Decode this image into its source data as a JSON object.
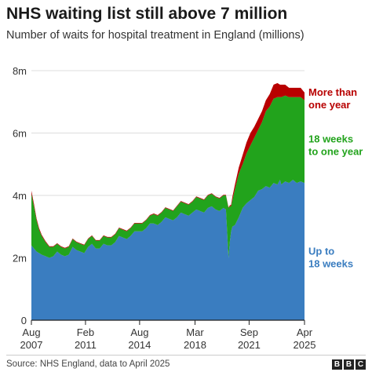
{
  "title": "NHS waiting list still above 7 million",
  "subtitle": "Number of waits for hospital treatment in England (millions)",
  "source": "Source: NHS England, data to April 2025",
  "logo": {
    "letters": [
      "B",
      "B",
      "C"
    ]
  },
  "chart_data": {
    "type": "area",
    "stacked": true,
    "title": "NHS waiting list still above 7 million",
    "subtitle": "Number of waits for hospital treatment in England (millions)",
    "ylim": [
      0,
      8
    ],
    "yticks": [
      0,
      2,
      4,
      6,
      8
    ],
    "ytick_labels": [
      "0",
      "2m",
      "4m",
      "6m",
      "8m"
    ],
    "xlim": [
      2007.583,
      2025.25
    ],
    "xticks": [
      {
        "x": 2007.583,
        "line1": "Aug",
        "line2": "2007"
      },
      {
        "x": 2011.083,
        "line1": "Feb",
        "line2": "2011"
      },
      {
        "x": 2014.583,
        "line1": "Aug",
        "line2": "2014"
      },
      {
        "x": 2018.167,
        "line1": "Mar",
        "line2": "2018"
      },
      {
        "x": 2021.667,
        "line1": "Sep",
        "line2": "2021"
      },
      {
        "x": 2025.25,
        "line1": "Apr",
        "line2": "2025"
      }
    ],
    "grid": true,
    "x": [
      2007.583,
      2007.75,
      2007.917,
      2008.083,
      2008.25,
      2008.5,
      2008.75,
      2009.0,
      2009.25,
      2009.5,
      2009.75,
      2010.0,
      2010.25,
      2010.5,
      2010.75,
      2011.0,
      2011.25,
      2011.5,
      2011.75,
      2012.0,
      2012.25,
      2012.5,
      2012.75,
      2013.0,
      2013.25,
      2013.5,
      2013.75,
      2014.0,
      2014.25,
      2014.5,
      2014.75,
      2015.0,
      2015.25,
      2015.5,
      2015.75,
      2016.0,
      2016.25,
      2016.5,
      2016.75,
      2017.0,
      2017.25,
      2017.5,
      2017.75,
      2018.0,
      2018.25,
      2018.5,
      2018.75,
      2019.0,
      2019.25,
      2019.5,
      2019.75,
      2020.0,
      2020.167,
      2020.25,
      2020.333,
      2020.417,
      2020.5,
      2020.583,
      2020.75,
      2021.0,
      2021.25,
      2021.5,
      2021.75,
      2022.0,
      2022.25,
      2022.5,
      2022.75,
      2023.0,
      2023.25,
      2023.5,
      2023.667,
      2023.75,
      2024.0,
      2024.25,
      2024.5,
      2024.75,
      2025.0,
      2025.25
    ],
    "series": [
      {
        "name": "Up to 18 weeks",
        "color": "#3a7dc0",
        "values": [
          2.4,
          2.3,
          2.2,
          2.15,
          2.1,
          2.05,
          2.0,
          2.05,
          2.2,
          2.1,
          2.05,
          2.1,
          2.35,
          2.25,
          2.2,
          2.15,
          2.35,
          2.45,
          2.3,
          2.3,
          2.45,
          2.4,
          2.4,
          2.5,
          2.7,
          2.65,
          2.6,
          2.7,
          2.85,
          2.85,
          2.85,
          2.95,
          3.1,
          3.1,
          3.05,
          3.15,
          3.3,
          3.25,
          3.2,
          3.3,
          3.45,
          3.4,
          3.35,
          3.45,
          3.55,
          3.5,
          3.45,
          3.6,
          3.65,
          3.55,
          3.5,
          3.6,
          3.55,
          2.8,
          2.0,
          2.5,
          2.85,
          3.0,
          3.05,
          3.3,
          3.6,
          3.75,
          3.85,
          3.95,
          4.15,
          4.2,
          4.3,
          4.25,
          4.4,
          4.35,
          4.5,
          4.35,
          4.45,
          4.4,
          4.5,
          4.4,
          4.45,
          4.4
        ]
      },
      {
        "name": "18 weeks to one year",
        "color": "#22a31c",
        "values": [
          1.65,
          1.35,
          1.0,
          0.75,
          0.6,
          0.45,
          0.35,
          0.3,
          0.25,
          0.25,
          0.25,
          0.25,
          0.25,
          0.25,
          0.25,
          0.25,
          0.25,
          0.25,
          0.25,
          0.25,
          0.25,
          0.25,
          0.25,
          0.25,
          0.25,
          0.25,
          0.25,
          0.25,
          0.25,
          0.25,
          0.25,
          0.25,
          0.25,
          0.3,
          0.3,
          0.3,
          0.3,
          0.3,
          0.3,
          0.35,
          0.35,
          0.35,
          0.35,
          0.35,
          0.4,
          0.4,
          0.4,
          0.4,
          0.4,
          0.4,
          0.4,
          0.4,
          0.45,
          1.0,
          1.6,
          1.15,
          0.8,
          0.85,
          1.15,
          1.4,
          1.4,
          1.6,
          1.75,
          1.9,
          1.95,
          2.15,
          2.4,
          2.6,
          2.7,
          2.8,
          2.65,
          2.8,
          2.75,
          2.75,
          2.65,
          2.75,
          2.7,
          2.65
        ]
      },
      {
        "name": "More than one year",
        "color": "#b80000",
        "values": [
          0.1,
          0.08,
          0.06,
          0.05,
          0.04,
          0.03,
          0.02,
          0.02,
          0.02,
          0.02,
          0.02,
          0.02,
          0.02,
          0.02,
          0.02,
          0.02,
          0.02,
          0.02,
          0.02,
          0.02,
          0.02,
          0.02,
          0.02,
          0.02,
          0.02,
          0.02,
          0.02,
          0.02,
          0.02,
          0.02,
          0.02,
          0.02,
          0.02,
          0.02,
          0.02,
          0.02,
          0.02,
          0.02,
          0.02,
          0.02,
          0.02,
          0.02,
          0.02,
          0.02,
          0.02,
          0.02,
          0.02,
          0.02,
          0.02,
          0.02,
          0.02,
          0.02,
          0.02,
          0.02,
          0.02,
          0.03,
          0.05,
          0.1,
          0.15,
          0.2,
          0.3,
          0.35,
          0.4,
          0.35,
          0.35,
          0.35,
          0.35,
          0.4,
          0.45,
          0.45,
          0.4,
          0.4,
          0.35,
          0.3,
          0.3,
          0.3,
          0.3,
          0.25
        ]
      }
    ],
    "series_labels": [
      {
        "series": 2,
        "line1": "More than",
        "line2": "one year",
        "color": "#b80000",
        "y": 7.2
      },
      {
        "series": 1,
        "line1": "18 weeks",
        "line2": "to one year",
        "color": "#22a31c",
        "y": 5.7
      },
      {
        "series": 0,
        "line1": "Up to",
        "line2": "18 weeks",
        "color": "#3a7dc0",
        "y": 2.1
      }
    ]
  }
}
